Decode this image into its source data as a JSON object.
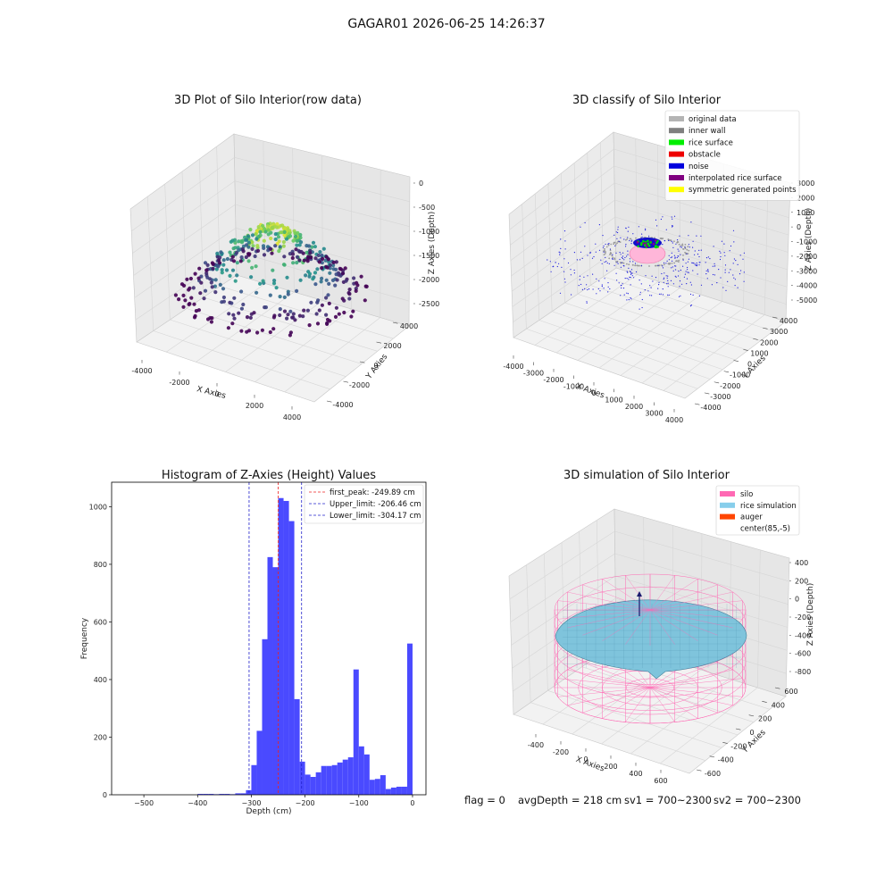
{
  "suptitle": "GAGAR01 2026-06-25 14:26:37",
  "info_line": {
    "flag": "flag = 0",
    "avg_depth": "avgDepth = 218 cm",
    "sv1": "sv1 = 700~2300",
    "sv2": "sv2 = 700~2300"
  },
  "chart_data": [
    {
      "type": "scatter",
      "subtype": "3d",
      "title": "3D Plot of Silo Interior(row data)",
      "xlabel": "X Axies",
      "ylabel": "Y Axies",
      "zlabel": "Z Axies (Depth)",
      "xticks": [
        "-4000",
        "-2000",
        "0",
        "2000",
        "4000"
      ],
      "yticks": [
        "-4000",
        "-2000",
        "0",
        "2000",
        "4000"
      ],
      "zticks": [
        "0",
        "-500",
        "-1000",
        "-1500",
        "-2000",
        "-2500"
      ],
      "xlim": [
        -4000,
        4000
      ],
      "ylim": [
        -4000,
        4000
      ],
      "zlim": [
        -2500,
        0
      ],
      "colormap": "viridis",
      "rings": [
        {
          "radius": 3800,
          "z": -2600,
          "count": 80
        },
        {
          "radius": 3300,
          "z": -2300,
          "count": 70
        },
        {
          "radius": 2900,
          "z": -2050,
          "count": 60
        },
        {
          "radius": 2600,
          "z": -1700,
          "count": 50
        },
        {
          "radius": 2300,
          "z": -1300,
          "count": 60
        },
        {
          "radius": 1700,
          "z": -900,
          "count": 55
        },
        {
          "radius": 1100,
          "z": -450,
          "count": 50
        },
        {
          "radius": 700,
          "z": -250,
          "count": 45
        }
      ]
    },
    {
      "type": "scatter",
      "subtype": "3d",
      "title": "3D classify of Silo Interior",
      "xlabel": "X Axies",
      "ylabel": "Y Axies",
      "zlabel": "Z Axies (Depth)",
      "xticks": [
        "-4000",
        "-3000",
        "-2000",
        "-1000",
        "0",
        "1000",
        "2000",
        "3000",
        "4000"
      ],
      "yticks": [
        "-4000",
        "-3000",
        "-2000",
        "-1000",
        "0",
        "1000",
        "2000",
        "3000",
        "4000"
      ],
      "zticks": [
        "3000",
        "2000",
        "1000",
        "0",
        "-1000",
        "-2000",
        "-3000",
        "-4000",
        "-5000"
      ],
      "xlim": [
        -4000,
        4000
      ],
      "ylim": [
        -4000,
        4000
      ],
      "zlim": [
        -5000,
        3000
      ],
      "legend_position": "top-right",
      "legend": [
        {
          "label": "original data",
          "color": "#b4b4b4"
        },
        {
          "label": "inner wall",
          "color": "#808080"
        },
        {
          "label": "rice surface",
          "color": "#00ee00"
        },
        {
          "label": "obstacle",
          "color": "#ee0000"
        },
        {
          "label": "noise",
          "color": "#0000dd"
        },
        {
          "label": "interpolated rice surface",
          "color": "#800080"
        },
        {
          "label": "symmetric generated points",
          "color": "#ffff00"
        }
      ]
    },
    {
      "type": "bar",
      "subtype": "histogram",
      "title": "Histogram of Z-Axies (Height) Values",
      "xlabel": "Depth (cm)",
      "ylabel": "Frequency",
      "xlim": [
        -560,
        25
      ],
      "ylim": [
        0,
        1085
      ],
      "xticks": [
        -500,
        -400,
        -300,
        -200,
        -100,
        0
      ],
      "yticks": [
        0,
        200,
        400,
        600,
        800,
        1000
      ],
      "bin_width": 10,
      "bins": [
        [
          -400,
          3
        ],
        [
          -390,
          3
        ],
        [
          -380,
          3
        ],
        [
          -370,
          2
        ],
        [
          -360,
          3
        ],
        [
          -350,
          3
        ],
        [
          -340,
          2
        ],
        [
          -330,
          5
        ],
        [
          -320,
          5
        ],
        [
          -310,
          16
        ],
        [
          -300,
          103
        ],
        [
          -290,
          222
        ],
        [
          -280,
          540
        ],
        [
          -270,
          825
        ],
        [
          -260,
          790
        ],
        [
          -250,
          1030
        ],
        [
          -240,
          1020
        ],
        [
          -230,
          950
        ],
        [
          -220,
          332
        ],
        [
          -210,
          115
        ],
        [
          -200,
          70
        ],
        [
          -190,
          62
        ],
        [
          -180,
          78
        ],
        [
          -170,
          100
        ],
        [
          -160,
          100
        ],
        [
          -150,
          103
        ],
        [
          -140,
          112
        ],
        [
          -130,
          122
        ],
        [
          -120,
          130
        ],
        [
          -110,
          435
        ],
        [
          -100,
          168
        ],
        [
          -90,
          140
        ],
        [
          -80,
          52
        ],
        [
          -70,
          55
        ],
        [
          -60,
          68
        ],
        [
          -50,
          20
        ],
        [
          -40,
          25
        ],
        [
          -30,
          28
        ],
        [
          -20,
          28
        ],
        [
          -10,
          525
        ]
      ],
      "bar_color": "#4a4aff",
      "vlines": [
        {
          "label": "first_peak: -249.89 cm",
          "x": -249.89,
          "color": "#ee2222"
        },
        {
          "label": "Upper_limit: -206.46 cm",
          "x": -206.46,
          "color": "#2222cc"
        },
        {
          "label": "Lower_limit: -304.17 cm",
          "x": -304.17,
          "color": "#2222cc"
        }
      ],
      "legend_position": "top-right"
    },
    {
      "type": "surface",
      "subtype": "3d",
      "title": "3D simulation of Silo Interior",
      "xlabel": "X Axies",
      "ylabel": "Y Axies",
      "zlabel": "Z Axies (Depth)",
      "xticks": [
        "-400",
        "-200",
        "0",
        "200",
        "400",
        "600"
      ],
      "yticks": [
        "-600",
        "-400",
        "-200",
        "0",
        "200",
        "400",
        "600"
      ],
      "zticks": [
        "400",
        "200",
        "0",
        "-200",
        "-400",
        "-600",
        "-800"
      ],
      "xlim": [
        -500,
        700
      ],
      "ylim": [
        -650,
        650
      ],
      "zlim": [
        -900,
        450
      ],
      "legend_position": "top-right",
      "legend": [
        {
          "label": "silo",
          "color": "#ff69b4"
        },
        {
          "label": "rice simulation",
          "color": "#87ceeb"
        },
        {
          "label": "auger",
          "color": "#ff4500"
        },
        {
          "label": "center(85,-5)",
          "color": ""
        }
      ]
    }
  ]
}
